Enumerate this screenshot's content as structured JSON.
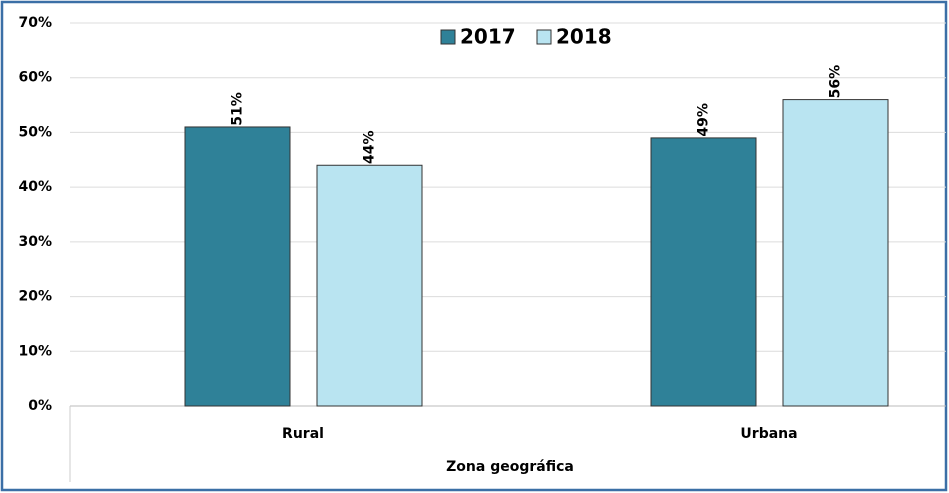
{
  "chart_data": {
    "type": "bar",
    "categories": [
      "Rural",
      "Urbana"
    ],
    "x_label": "Zona geográfica",
    "series": [
      {
        "name": "2017",
        "color": "#2f8198",
        "values": [
          51,
          49
        ],
        "value_labels": [
          "51%",
          "49%"
        ]
      },
      {
        "name": "2018",
        "color": "#b9e4f1",
        "values": [
          44,
          56
        ],
        "value_labels": [
          "44%",
          "56%"
        ]
      }
    ],
    "ylim": [
      0,
      70
    ],
    "yticks": [
      {
        "value": 0,
        "label": "0%"
      },
      {
        "value": 10,
        "label": "10%"
      },
      {
        "value": 20,
        "label": "20%"
      },
      {
        "value": 30,
        "label": "30%"
      },
      {
        "value": 40,
        "label": "40%"
      },
      {
        "value": 50,
        "label": "50%"
      },
      {
        "value": 60,
        "label": "60%"
      },
      {
        "value": 70,
        "label": "70%"
      }
    ],
    "grid": true,
    "legend": "top"
  }
}
